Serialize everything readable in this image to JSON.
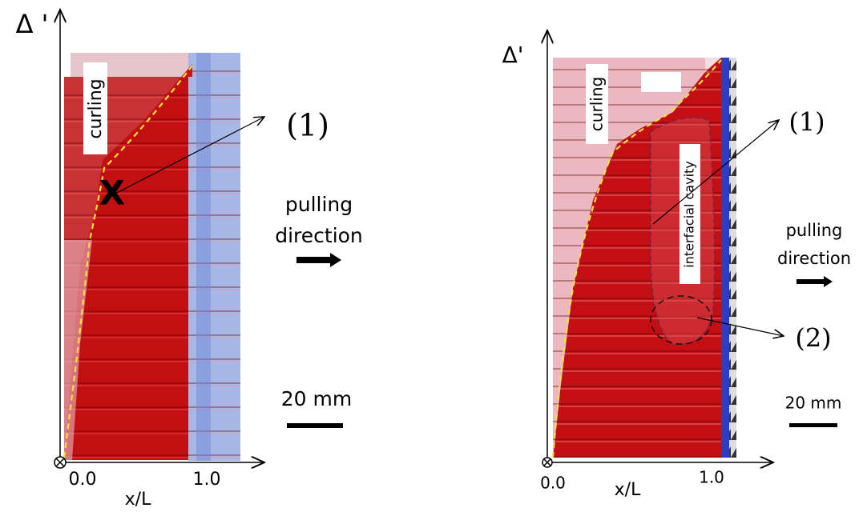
{
  "left_panel": {
    "axis_label": "Δ '",
    "marker": "X",
    "region_label": "curling",
    "callout": "(1)",
    "direction_lines": [
      "pulling",
      "direction"
    ],
    "scale_label": "20 mm",
    "x_ticks": [
      "0.0",
      "1.0"
    ],
    "x_label": "x/L"
  },
  "right_panel": {
    "axis_label": "Δ'",
    "region_label": "curling",
    "cavity_label": "interfacial cavity",
    "callouts": [
      "(1)",
      "(2)"
    ],
    "direction_lines": [
      "pulling",
      "direction"
    ],
    "scale_label": "20 mm",
    "x_ticks": [
      "0.0",
      "1.0"
    ],
    "x_label": "x/L"
  }
}
